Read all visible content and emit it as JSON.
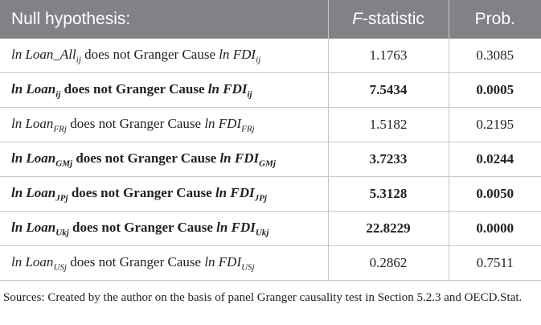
{
  "table": {
    "header": [
      {
        "text": "Null hypothesis:"
      },
      {
        "italic": "F",
        "text": "-statistic"
      },
      {
        "text": "Prob."
      }
    ],
    "rows": [
      {
        "bold": false,
        "lhs": "ln Loan_All",
        "lhs_sub": "ij",
        "middle": "does not Granger Cause",
        "rhs": "ln FDI",
        "rhs_sub": "ij",
        "f": "1.1763",
        "prob": "0.3085"
      },
      {
        "bold": true,
        "lhs": "ln Loan",
        "lhs_sub": "ij",
        "middle": "does not Granger Cause",
        "rhs": "ln FDI",
        "rhs_sub": "ij",
        "f": "7.5434",
        "prob": "0.0005"
      },
      {
        "bold": false,
        "lhs": "ln Loan",
        "lhs_sub": "FRj",
        "middle": "does not Granger Cause",
        "rhs": "ln FDI",
        "rhs_sub": "FRj",
        "f": "1.5182",
        "prob": "0.2195"
      },
      {
        "bold": true,
        "lhs": "ln Loan",
        "lhs_sub": "GMj",
        "middle": "does not Granger Cause",
        "rhs": "ln FDI",
        "rhs_sub": "GMj",
        "f": "3.7233",
        "prob": "0.0244"
      },
      {
        "bold": true,
        "lhs": "ln Loan",
        "lhs_sub": "JPj",
        "middle": "does not Granger Cause",
        "rhs": "ln FDI",
        "rhs_sub": "JPj",
        "f": "5.3128",
        "prob": "0.0050"
      },
      {
        "bold": true,
        "lhs": "ln Loan",
        "lhs_sub": "Ukj",
        "middle": "does not Granger Cause",
        "rhs": "ln FDI",
        "rhs_sub": "Ukj",
        "f": "22.8229",
        "prob": "0.0000"
      },
      {
        "bold": false,
        "lhs": "ln Loan",
        "lhs_sub": "USj",
        "middle": "does not Granger Cause",
        "rhs": "ln FDI",
        "rhs_sub": "USj",
        "f": "0.2862",
        "prob": "0.7511"
      }
    ],
    "source": "Sources: Created by the author on the basis of panel Granger causality test in Section 5.2.3 and OECD.Stat."
  }
}
